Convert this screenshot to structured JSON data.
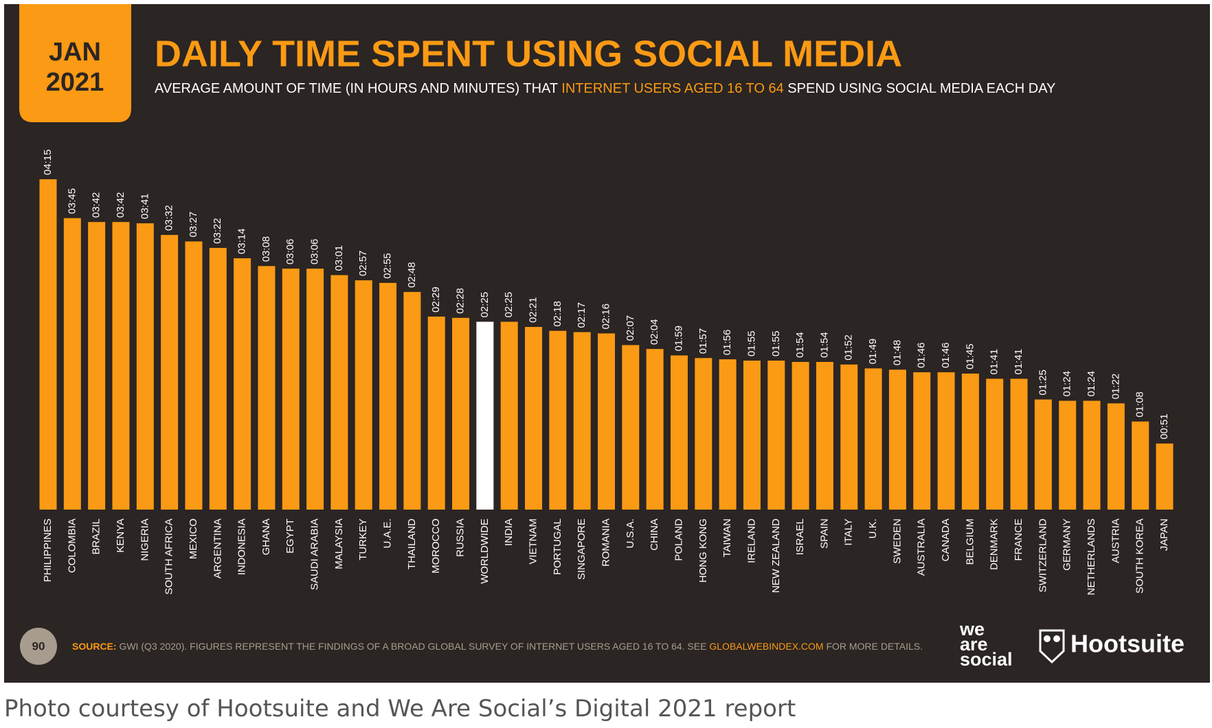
{
  "badge": {
    "month": "JAN",
    "year": "2021"
  },
  "subtitle": {
    "before": "AVERAGE AMOUNT OF TIME (IN HOURS AND MINUTES) THAT ",
    "highlight": "INTERNET USERS AGED 16 TO 64",
    "after": " SPEND USING SOCIAL MEDIA EACH DAY"
  },
  "footer": {
    "page_number": "90",
    "source_label": "SOURCE:",
    "source_text": " GWI (Q3 2020). FIGURES REPRESENT THE FINDINGS OF A BROAD GLOBAL SURVEY OF INTERNET USERS AGED 16 TO 64. SEE ",
    "source_link": "GLOBALWEBINDEX.COM",
    "source_end": " FOR MORE DETAILS.",
    "logo_1": [
      "we",
      "are",
      "social"
    ],
    "logo_2": "Hootsuite"
  },
  "caption": "Photo courtesy of Hootsuite and We Are Social’s Digital 2021 report",
  "chart_data": {
    "type": "bar",
    "title": "DAILY TIME SPENT USING SOCIAL MEDIA",
    "categories": [
      "PHILIPPINES",
      "COLOMBIA",
      "BRAZIL",
      "KENYA",
      "NIGERIA",
      "SOUTH AFRICA",
      "MEXICO",
      "ARGENTINA",
      "INDONESIA",
      "GHANA",
      "EGYPT",
      "SAUDI ARABIA",
      "MALAYSIA",
      "TURKEY",
      "U.A.E.",
      "THAILAND",
      "MOROCCO",
      "RUSSIA",
      "WORLDWIDE",
      "INDIA",
      "VIETNAM",
      "PORTUGAL",
      "SINGAPORE",
      "ROMANIA",
      "U.S.A.",
      "CHINA",
      "POLAND",
      "HONG KONG",
      "TAIWAN",
      "IRELAND",
      "NEW ZEALAND",
      "ISRAEL",
      "SPAIN",
      "ITALY",
      "U.K.",
      "SWEDEN",
      "AUSTRALIA",
      "CANADA",
      "BELGIUM",
      "DENMARK",
      "FRANCE",
      "SWITZERLAND",
      "GERMANY",
      "NETHERLANDS",
      "AUSTRIA",
      "SOUTH KOREA",
      "JAPAN"
    ],
    "values": [
      255,
      225,
      222,
      222,
      221,
      212,
      207,
      202,
      194,
      188,
      186,
      186,
      181,
      177,
      175,
      168,
      149,
      148,
      145,
      145,
      141,
      138,
      137,
      136,
      127,
      124,
      119,
      117,
      116,
      115,
      115,
      114,
      114,
      112,
      109,
      108,
      106,
      106,
      105,
      101,
      101,
      85,
      84,
      84,
      82,
      68,
      51
    ],
    "value_labels": [
      "04:15",
      "03:45",
      "03:42",
      "03:42",
      "03:41",
      "03:32",
      "03:27",
      "03:22",
      "03:14",
      "03:08",
      "03:06",
      "03:06",
      "03:01",
      "02:57",
      "02:55",
      "02:48",
      "02:29",
      "02:28",
      "02:25",
      "02:25",
      "02:21",
      "02:18",
      "02:17",
      "02:16",
      "02:07",
      "02:04",
      "01:59",
      "01:57",
      "01:56",
      "01:55",
      "01:55",
      "01:54",
      "01:54",
      "01:52",
      "01:49",
      "01:48",
      "01:46",
      "01:46",
      "01:45",
      "01:41",
      "01:41",
      "01:25",
      "01:24",
      "01:24",
      "01:22",
      "01:08",
      "00:51"
    ],
    "colors": [
      "#fb9a14",
      "#fb9a14",
      "#fb9a14",
      "#fb9a14",
      "#fb9a14",
      "#fb9a14",
      "#fb9a14",
      "#fb9a14",
      "#fb9a14",
      "#fb9a14",
      "#fb9a14",
      "#fb9a14",
      "#fb9a14",
      "#fb9a14",
      "#fb9a14",
      "#fb9a14",
      "#fb9a14",
      "#fb9a14",
      "#ffffff",
      "#fb9a14",
      "#fb9a14",
      "#fb9a14",
      "#fb9a14",
      "#fb9a14",
      "#fb9a14",
      "#fb9a14",
      "#fb9a14",
      "#fb9a14",
      "#fb9a14",
      "#fb9a14",
      "#fb9a14",
      "#fb9a14",
      "#fb9a14",
      "#fb9a14",
      "#fb9a14",
      "#fb9a14",
      "#fb9a14",
      "#fb9a14",
      "#fb9a14",
      "#fb9a14",
      "#fb9a14",
      "#fb9a14",
      "#fb9a14",
      "#fb9a14",
      "#fb9a14",
      "#fb9a14",
      "#fb9a14"
    ],
    "label_color": "#ffffff",
    "grid": false
  }
}
